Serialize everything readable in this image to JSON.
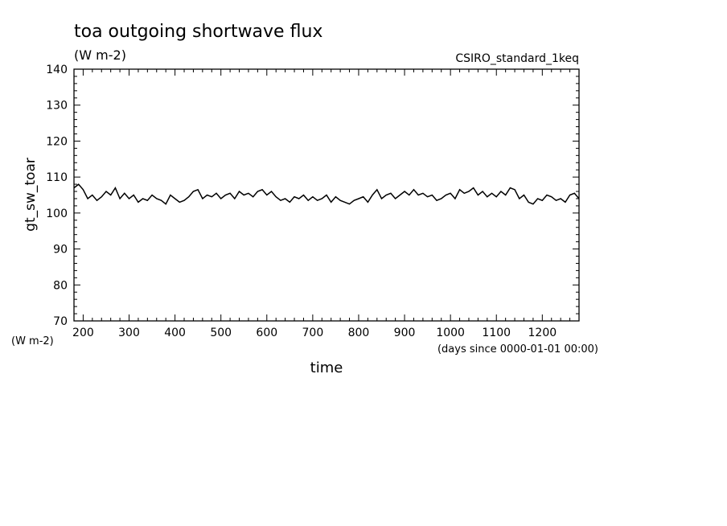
{
  "chart_data": {
    "type": "line",
    "title": "toa outgoing shortwave flux",
    "title_units": "(W m-2)",
    "run_label": "CSIRO_standard_1keq",
    "xlabel": "time",
    "x_units_note": "(days since 0000-01-01 00:00)",
    "ylabel": "gt_sw_toar",
    "y_units_note": "(W m-2)",
    "xlim": [
      180,
      1280
    ],
    "ylim": [
      70,
      140
    ],
    "xticks": [
      200,
      300,
      400,
      500,
      600,
      700,
      800,
      900,
      1000,
      1100,
      1200
    ],
    "yticks": [
      70,
      80,
      90,
      100,
      110,
      120,
      130,
      140
    ],
    "grid": false,
    "series": [
      {
        "color": "#000000",
        "x": [
          180,
          190,
          200,
          210,
          220,
          230,
          240,
          250,
          260,
          270,
          280,
          290,
          300,
          310,
          320,
          330,
          340,
          350,
          360,
          370,
          380,
          390,
          400,
          410,
          420,
          430,
          440,
          450,
          460,
          470,
          480,
          490,
          500,
          510,
          520,
          530,
          540,
          550,
          560,
          570,
          580,
          590,
          600,
          610,
          620,
          630,
          640,
          650,
          660,
          670,
          680,
          690,
          700,
          710,
          720,
          730,
          740,
          750,
          760,
          770,
          780,
          790,
          800,
          810,
          820,
          830,
          840,
          850,
          860,
          870,
          880,
          890,
          900,
          910,
          920,
          930,
          940,
          950,
          960,
          970,
          980,
          990,
          1000,
          1010,
          1020,
          1030,
          1040,
          1050,
          1060,
          1070,
          1080,
          1090,
          1100,
          1110,
          1120,
          1130,
          1140,
          1150,
          1160,
          1170,
          1180,
          1190,
          1200,
          1210,
          1220,
          1230,
          1240,
          1250,
          1260,
          1270,
          1280
        ],
        "y": [
          107,
          108,
          106.5,
          104,
          105,
          103.5,
          104.5,
          106,
          105,
          107,
          104,
          105.5,
          104,
          105,
          103,
          104,
          103.5,
          105,
          104,
          103.5,
          102.5,
          105,
          104,
          103,
          103.5,
          104.5,
          106,
          106.5,
          104,
          105,
          104.5,
          105.5,
          104,
          105,
          105.5,
          104,
          106,
          105,
          105.5,
          104.5,
          106,
          106.5,
          105,
          106,
          104.5,
          103.5,
          104,
          103,
          104.5,
          104,
          105,
          103.5,
          104.5,
          103.5,
          104,
          105,
          103,
          104.5,
          103.5,
          103,
          102.5,
          103.5,
          104,
          104.5,
          103,
          105,
          106.5,
          104,
          105,
          105.5,
          104,
          105,
          106,
          105,
          106.5,
          105,
          105.5,
          104.5,
          105,
          103.5,
          104,
          105,
          105.5,
          104,
          106.5,
          105.5,
          106,
          107,
          105,
          106,
          104.5,
          105.5,
          104.5,
          106,
          105,
          107,
          106.5,
          104,
          105,
          103,
          102.5,
          104,
          103.5,
          105,
          104.5,
          103.5,
          104,
          103,
          105,
          105.5,
          104
        ]
      }
    ]
  }
}
